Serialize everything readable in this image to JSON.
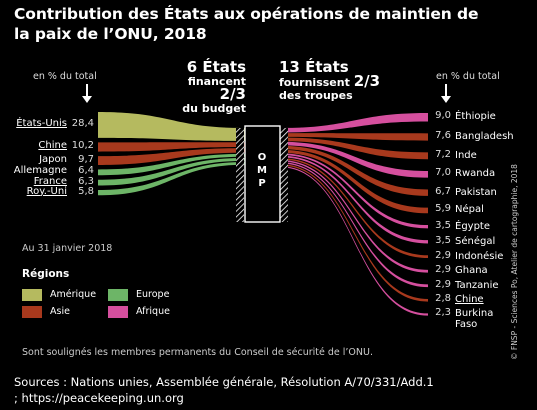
{
  "title": "Contribution des États aux opérations de maintien de la paix de l’ONU, 2018",
  "unit_left": "en % du total",
  "unit_right": "en % du total",
  "annotation_left": {
    "pre": "6 États",
    "line2a": "financent ",
    "line2b": "2/3",
    "line3": "du budget"
  },
  "annotation_right": {
    "pre": "13 États",
    "line2a": "fournissent ",
    "line2b": "2/3",
    "line3": "des troupes"
  },
  "center_label": "OMP",
  "date": "Au 31 janvier 2018",
  "legend": {
    "title": "Régions",
    "items": [
      {
        "label": "Amérique",
        "color": "#b5ba5f"
      },
      {
        "label": "Europe",
        "color": "#6db567"
      },
      {
        "label": "Asie",
        "color": "#a8391d"
      },
      {
        "label": "Afrique",
        "color": "#d54f9e"
      }
    ]
  },
  "note": "Sont soulignés les membres permanents du Conseil de sécurité de l’ONU.",
  "sources": "Sources : Nations unies, Assemblée générale, Résolution A/70/331/Add.1 ; https://peacekeeping.un.org",
  "credit": "© FNSP - Sciences Po, Atelier de cartographie, 2018",
  "chart_data": {
    "type": "sankey",
    "center": "OMP",
    "left": [
      {
        "name": "États-Unis",
        "value": "28,4",
        "region": "Amérique",
        "underlined": true
      },
      {
        "name": "Chine",
        "value": "10,2",
        "region": "Asie",
        "underlined": true
      },
      {
        "name": "Japon",
        "value": "9,7",
        "region": "Asie",
        "underlined": false
      },
      {
        "name": "Allemagne",
        "value": "6,4",
        "region": "Europe",
        "underlined": false
      },
      {
        "name": "France",
        "value": "6,3",
        "region": "Europe",
        "underlined": true
      },
      {
        "name": "Roy.-Uni",
        "value": "5,8",
        "region": "Europe",
        "underlined": true
      }
    ],
    "right": [
      {
        "name": "Éthiopie",
        "value": "9,0",
        "region": "Afrique",
        "underlined": false
      },
      {
        "name": "Bangladesh",
        "value": "7,6",
        "region": "Asie",
        "underlined": false
      },
      {
        "name": "Inde",
        "value": "7,2",
        "region": "Asie",
        "underlined": false
      },
      {
        "name": "Rwanda",
        "value": "7,0",
        "region": "Afrique",
        "underlined": false
      },
      {
        "name": "Pakistan",
        "value": "6,7",
        "region": "Asie",
        "underlined": false
      },
      {
        "name": "Népal",
        "value": "5,9",
        "region": "Asie",
        "underlined": false
      },
      {
        "name": "Égypte",
        "value": "3,5",
        "region": "Afrique",
        "underlined": false
      },
      {
        "name": "Sénégal",
        "value": "3,5",
        "region": "Afrique",
        "underlined": false
      },
      {
        "name": "Indonésie",
        "value": "2,9",
        "region": "Asie",
        "underlined": false
      },
      {
        "name": "Ghana",
        "value": "2,9",
        "region": "Afrique",
        "underlined": false
      },
      {
        "name": "Tanzanie",
        "value": "2,9",
        "region": "Afrique",
        "underlined": false
      },
      {
        "name": "Chine",
        "value": "2,8",
        "region": "Asie",
        "underlined": true
      },
      {
        "name": "Burkina Faso",
        "value": "2,3",
        "region": "Afrique",
        "underlined": false
      }
    ]
  }
}
